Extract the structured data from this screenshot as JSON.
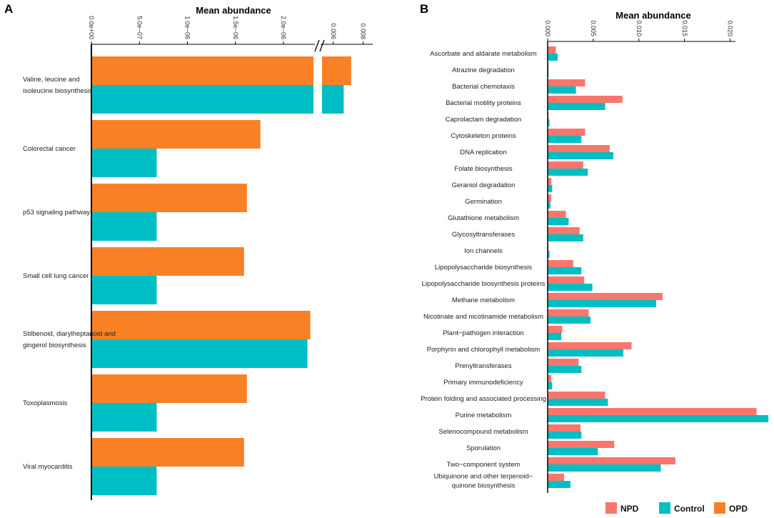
{
  "chart_data": [
    {
      "panel": "A",
      "type": "bar",
      "orientation": "horizontal",
      "xlabel": "Mean abundance",
      "axis_break": true,
      "segments": [
        {
          "range": [
            0,
            2.35e-06
          ],
          "ticks": [
            0,
            5e-07,
            1e-06,
            1.5e-06,
            2e-06
          ],
          "tick_labels": [
            "0.0e+00",
            "5.0e−07",
            "1.0e−06",
            "1.5e−06",
            "2.0e−06"
          ]
        },
        {
          "range": [
            0.00525,
            0.0084
          ],
          "ticks": [
            0.006,
            0.008
          ],
          "tick_labels": [
            "0.006",
            "0.008"
          ]
        }
      ],
      "categories": [
        "Valine, leucine and isoleucine biosynthesis",
        "Colorectal cancer",
        "p53 signaling pathway",
        "Small cell lung cancer",
        "Stilbenoid, diarylheptanoid and gingerol biosynthesis",
        "Toxoplasmosis",
        "Viral myocarditis"
      ],
      "category_label_lines": [
        [
          "Valine, leucine and",
          "isoleucine  biosynthesis"
        ],
        [
          "Colorectal cancer"
        ],
        [
          "p53 signaling pathway"
        ],
        [
          "Small cell lung cancer"
        ],
        [
          "Stilbenoid, diarylheptanoid and",
          "gingerol biosynthesis"
        ],
        [
          "Toxoplasmosis"
        ],
        [
          "Viral myocarditis"
        ]
      ],
      "series": [
        {
          "name": "OPD",
          "color": "#F98025",
          "values": [
            0.0072,
            1.76e-06,
            1.62e-06,
            1.59e-06,
            2.28e-06,
            1.62e-06,
            1.59e-06
          ]
        },
        {
          "name": "Control",
          "color": "#00BFC4",
          "values": [
            0.0067,
            6.8e-07,
            6.8e-07,
            6.8e-07,
            2.25e-06,
            6.8e-07,
            6.8e-07
          ]
        }
      ]
    },
    {
      "panel": "B",
      "type": "bar",
      "orientation": "horizontal",
      "xlabel": "Mean abundance",
      "xlim": [
        0,
        0.0245
      ],
      "ticks": [
        0,
        0.005,
        0.01,
        0.015,
        0.02
      ],
      "tick_labels": [
        "0.000",
        "0.005",
        "0.010",
        "0.015",
        "0.020"
      ],
      "categories": [
        "Ascorbate and aldarate metabolism",
        "Atrazine degradation",
        "Bacterial chemotaxis",
        "Bacterial motility proteins",
        "Caprolactam degradation",
        "Cytoskeleton proteins",
        "DNA replication",
        "Folate biosynthesis",
        "Geraniol degradation",
        "Germination",
        "Glutathione metabolism",
        "Glycosyltransferases",
        "Ion channels",
        "Lipopolysaccharide biosynthesis",
        "Lipopolysaccharide biosynthesis proteins",
        "Methane metabolism",
        "Nicotinate and nicotinamide metabolism",
        "Plant−pathogen interaction",
        "Porphyrin and chlorophyll metabolism",
        "Prenyltransferases",
        "Primary immunodeficiency",
        "Protein folding and associated processing",
        "Purine metabolism",
        "Selenocompound metabolism",
        "Sporulation",
        "Two−component system",
        "Ubiquinone and other terpenoid−quinone biosynthesis"
      ],
      "category_label_lines": [
        [
          "Ascorbate and aldarate metabolism"
        ],
        [
          "Atrazine degradation"
        ],
        [
          "Bacterial chemotaxis"
        ],
        [
          "Bacterial motility proteins"
        ],
        [
          "Caprolactam degradation"
        ],
        [
          "Cytoskeleton proteins"
        ],
        [
          "DNA replication"
        ],
        [
          "Folate biosynthesis"
        ],
        [
          "Geraniol degradation"
        ],
        [
          "Germination"
        ],
        [
          "Glutathione metabolism"
        ],
        [
          "Glycosyltransferases"
        ],
        [
          "Ion channels"
        ],
        [
          "Lipopolysaccharide biosynthesis"
        ],
        [
          "Lipopolysaccharide biosynthesis proteins"
        ],
        [
          "Methane metabolism"
        ],
        [
          "Nicotinate and nicotinamide metabolism"
        ],
        [
          "Plant−pathogen interaction"
        ],
        [
          "Porphyrin and chlorophyll metabolism"
        ],
        [
          "Prenyltransferases"
        ],
        [
          "Primary immunodeficiency"
        ],
        [
          "Protein folding and associated processing"
        ],
        [
          "Purine metabolism"
        ],
        [
          "Selenocompound metabolism"
        ],
        [
          "Sporulation"
        ],
        [
          "Two−component system"
        ],
        [
          "Ubiquinone and other terpenoid−",
          "quinone biosynthesis"
        ]
      ],
      "series": [
        {
          "name": "NPD",
          "color": "#F8766D",
          "values": [
            0.0009,
            0.0001,
            0.0041,
            0.0082,
            0.0001,
            0.0041,
            0.0068,
            0.0039,
            0.0004,
            0.0004,
            0.002,
            0.0035,
            0.0001,
            0.0028,
            0.004,
            0.0126,
            0.0045,
            0.0016,
            0.0092,
            0.0034,
            0.0004,
            0.0063,
            0.0229,
            0.0036,
            0.0073,
            0.014,
            0.0018
          ]
        },
        {
          "name": "Control",
          "color": "#00BFC4",
          "values": [
            0.0011,
            0.0001,
            0.0031,
            0.0063,
            0.0002,
            0.0037,
            0.0072,
            0.0044,
            0.0005,
            0.0003,
            0.0023,
            0.0039,
            0.0002,
            0.0037,
            0.0049,
            0.0119,
            0.0047,
            0.0015,
            0.0083,
            0.0037,
            0.0005,
            0.0066,
            0.0242,
            0.0037,
            0.0055,
            0.0124,
            0.0025
          ]
        }
      ]
    }
  ],
  "legend": [
    {
      "label": "NPD",
      "color": "#F8766D"
    },
    {
      "label": "Control",
      "color": "#00BFC4"
    },
    {
      "label": "OPD",
      "color": "#F98025"
    }
  ]
}
